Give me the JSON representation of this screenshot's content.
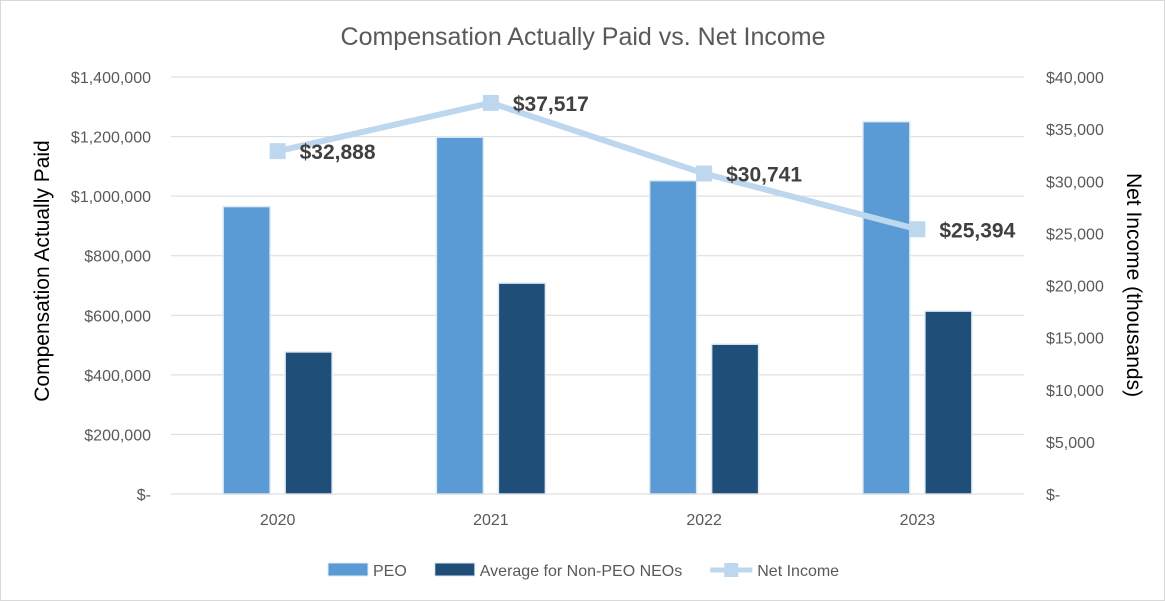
{
  "chart_data": {
    "type": "bar",
    "title": "Compensation Actually Paid vs. Net Income",
    "categories": [
      "2020",
      "2021",
      "2022",
      "2023"
    ],
    "y_left": {
      "label": "Compensation Actually Paid",
      "range": [
        0,
        1400000
      ],
      "ticks": [
        "$-",
        "$200,000",
        "$400,000",
        "$600,000",
        "$800,000",
        "$1,000,000",
        "$1,200,000",
        "$1,400,000"
      ]
    },
    "y_right": {
      "label": "Net Income (thousands)",
      "range": [
        0,
        40000
      ],
      "ticks": [
        "$-",
        "$5,000",
        "$10,000",
        "$15,000",
        "$20,000",
        "$25,000",
        "$30,000",
        "$35,000",
        "$40,000"
      ]
    },
    "grid": true,
    "legend_position": "bottom",
    "series": [
      {
        "name": "PEO",
        "type": "bar",
        "axis": "left",
        "color": "#5b9bd5",
        "values": [
          965000,
          1198000,
          1052000,
          1250000
        ]
      },
      {
        "name": "Average for Non-PEO NEOs",
        "type": "bar",
        "axis": "left",
        "color": "#1f4e79",
        "values": [
          477000,
          708000,
          503000,
          614000
        ]
      },
      {
        "name": "Net Income",
        "type": "line",
        "axis": "right",
        "color": "#bdd7ee",
        "values": [
          32888,
          37517,
          30741,
          25394
        ],
        "labels": [
          "$32,888",
          "$37,517",
          "$30,741",
          "$25,394"
        ]
      }
    ]
  }
}
